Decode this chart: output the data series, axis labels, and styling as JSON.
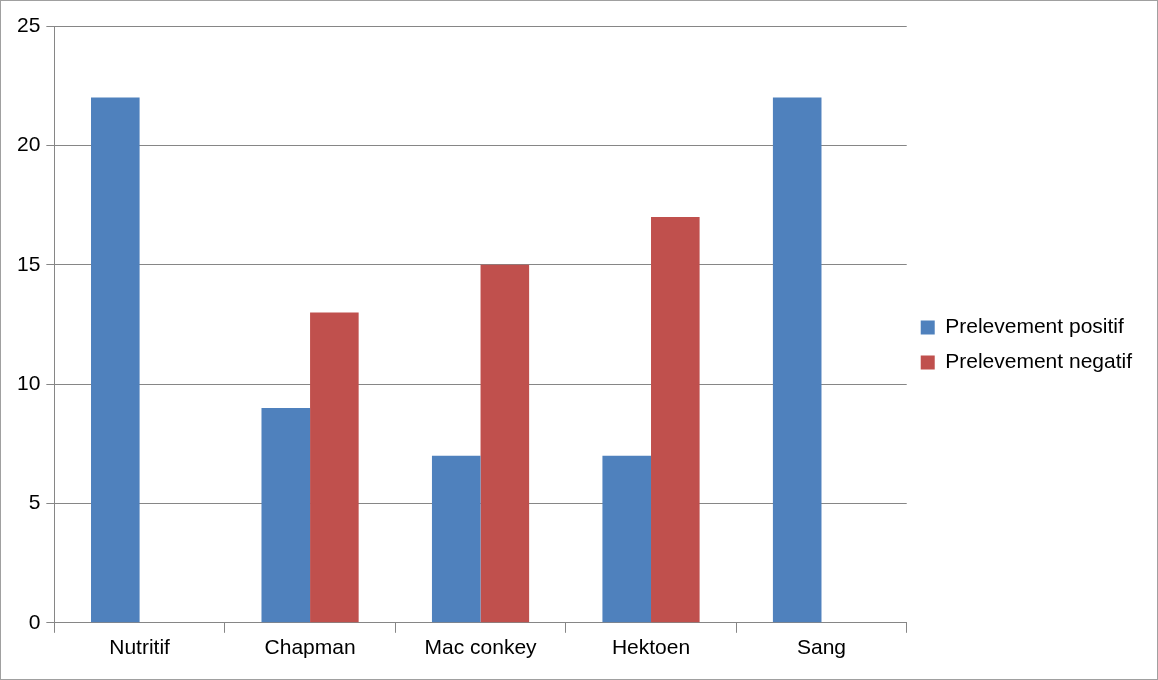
{
  "chart_data": {
    "type": "bar",
    "categories": [
      "Nutritif",
      "Chapman",
      "Mac conkey",
      "Hektoen",
      "Sang"
    ],
    "series": [
      {
        "name": "Prelevement positif",
        "color": "#4f81bd",
        "values": [
          22,
          9,
          7,
          7,
          22
        ]
      },
      {
        "name": "Prelevement negatif",
        "color": "#c0504d",
        "values": [
          null,
          13,
          15,
          17,
          null
        ]
      }
    ],
    "ylim": [
      0,
      25
    ],
    "yticks": [
      0,
      5,
      10,
      15,
      20,
      25
    ],
    "grid": "y",
    "legend": "right"
  }
}
